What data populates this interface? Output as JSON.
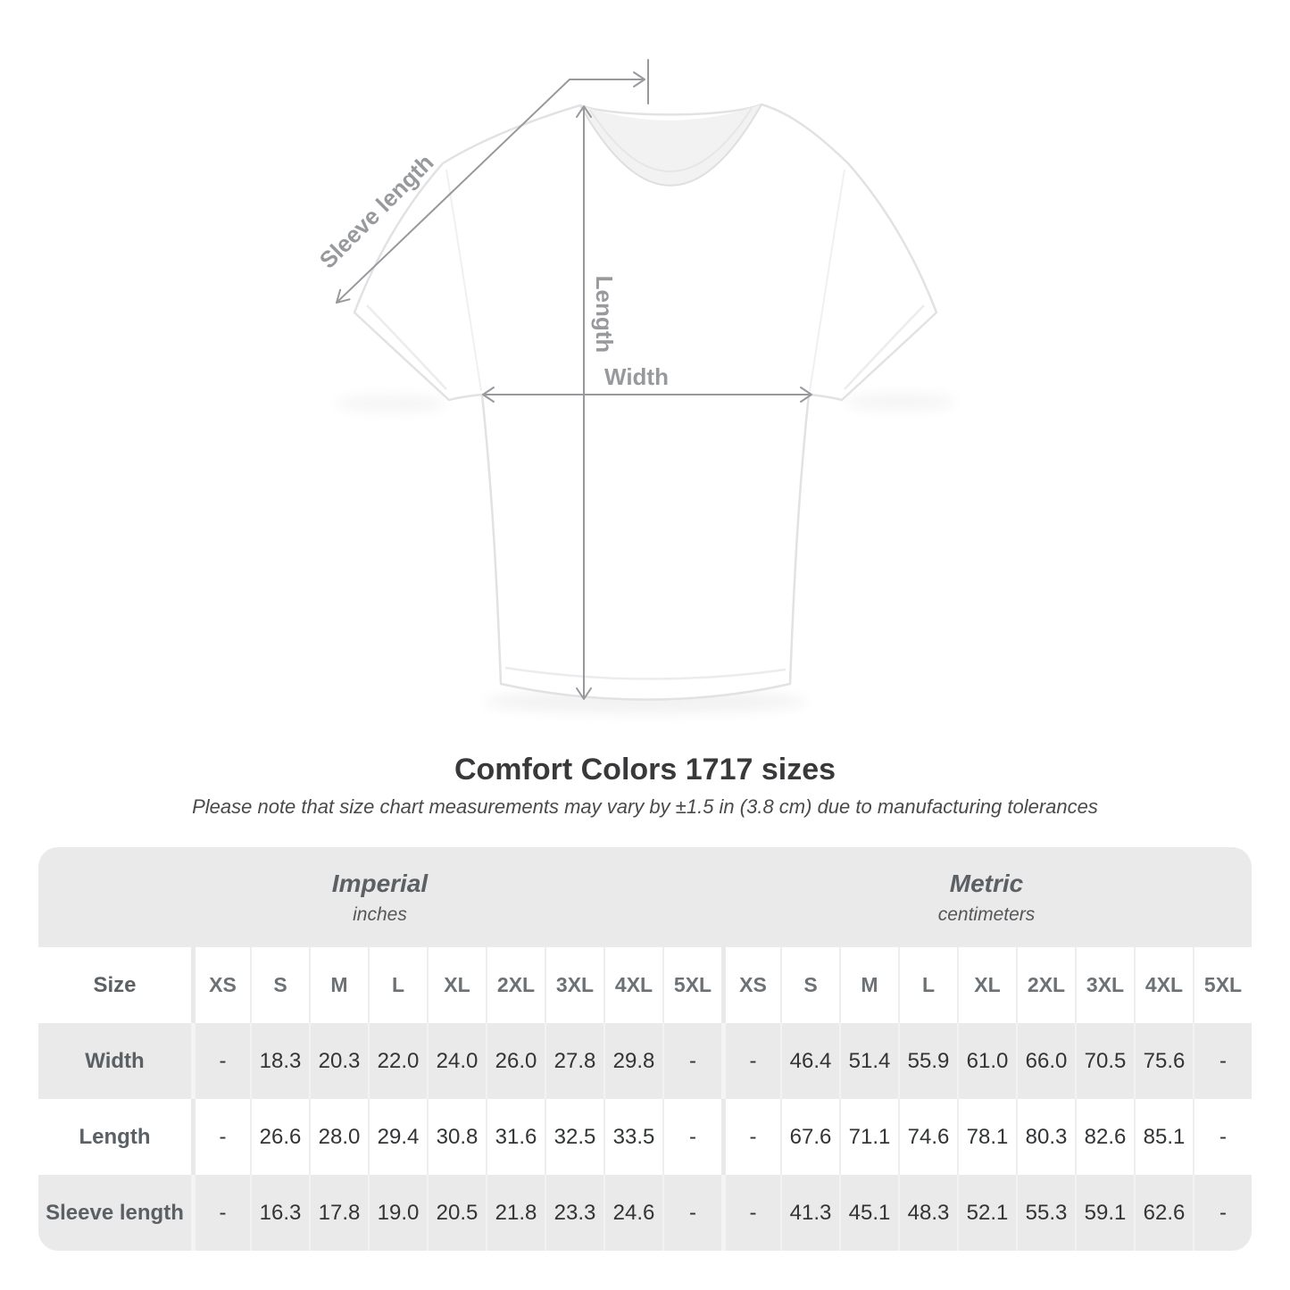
{
  "shirt_diagram": {
    "labels": {
      "sleeve_length": "Sleeve length",
      "length": "Length",
      "width": "Width"
    },
    "line_color": "#97999c",
    "label_color": "#97999c",
    "shirt_outline_color": "#e2e2e5"
  },
  "heading": {
    "title": "Comfort Colors 1717 sizes",
    "subtitle": "Please note that size chart measurements may vary by ±1.5 in (3.8 cm) due to manufacturing tolerances"
  },
  "table": {
    "units": [
      {
        "name": "Imperial",
        "sub": "inches"
      },
      {
        "name": "Metric",
        "sub": "centimeters"
      }
    ],
    "size_label": "Size",
    "sizes": [
      "XS",
      "S",
      "M",
      "L",
      "XL",
      "2XL",
      "3XL",
      "4XL",
      "5XL"
    ],
    "rows": [
      {
        "label": "Width",
        "imperial": [
          "-",
          "18.3",
          "20.3",
          "22.0",
          "24.0",
          "26.0",
          "27.8",
          "29.8",
          "-"
        ],
        "metric": [
          "-",
          "46.4",
          "51.4",
          "55.9",
          "61.0",
          "66.0",
          "70.5",
          "75.6",
          "-"
        ]
      },
      {
        "label": "Length",
        "imperial": [
          "-",
          "26.6",
          "28.0",
          "29.4",
          "30.8",
          "31.6",
          "32.5",
          "33.5",
          "-"
        ],
        "metric": [
          "-",
          "67.6",
          "71.1",
          "74.6",
          "78.1",
          "80.3",
          "82.6",
          "85.1",
          "-"
        ]
      },
      {
        "label": "Sleeve length",
        "imperial": [
          "-",
          "16.3",
          "17.8",
          "19.0",
          "20.5",
          "21.8",
          "23.3",
          "24.6",
          "-"
        ],
        "metric": [
          "-",
          "41.3",
          "45.1",
          "48.3",
          "52.1",
          "55.3",
          "59.1",
          "62.6",
          "-"
        ]
      }
    ],
    "row_background_gray": "#eaeaea",
    "row_background_white": "#ffffff"
  },
  "chart_data": {
    "type": "table",
    "title": "Comfort Colors 1717 sizes",
    "note": "Please note that size chart measurements may vary by ±1.5 in (3.8 cm) due to manufacturing tolerances",
    "column_groups": [
      {
        "name": "Imperial",
        "unit": "inches"
      },
      {
        "name": "Metric",
        "unit": "centimeters"
      }
    ],
    "sizes": [
      "XS",
      "S",
      "M",
      "L",
      "XL",
      "2XL",
      "3XL",
      "4XL",
      "5XL"
    ],
    "rows": [
      {
        "measurement": "Width",
        "imperial_in": [
          null,
          18.3,
          20.3,
          22.0,
          24.0,
          26.0,
          27.8,
          29.8,
          null
        ],
        "metric_cm": [
          null,
          46.4,
          51.4,
          55.9,
          61.0,
          66.0,
          70.5,
          75.6,
          null
        ]
      },
      {
        "measurement": "Length",
        "imperial_in": [
          null,
          26.6,
          28.0,
          29.4,
          30.8,
          31.6,
          32.5,
          33.5,
          null
        ],
        "metric_cm": [
          null,
          67.6,
          71.1,
          74.6,
          78.1,
          80.3,
          82.6,
          85.1,
          null
        ]
      },
      {
        "measurement": "Sleeve length",
        "imperial_in": [
          null,
          16.3,
          17.8,
          19.0,
          20.5,
          21.8,
          23.3,
          24.6,
          null
        ],
        "metric_cm": [
          null,
          41.3,
          45.1,
          48.3,
          52.1,
          55.3,
          59.1,
          62.6,
          null
        ]
      }
    ]
  }
}
